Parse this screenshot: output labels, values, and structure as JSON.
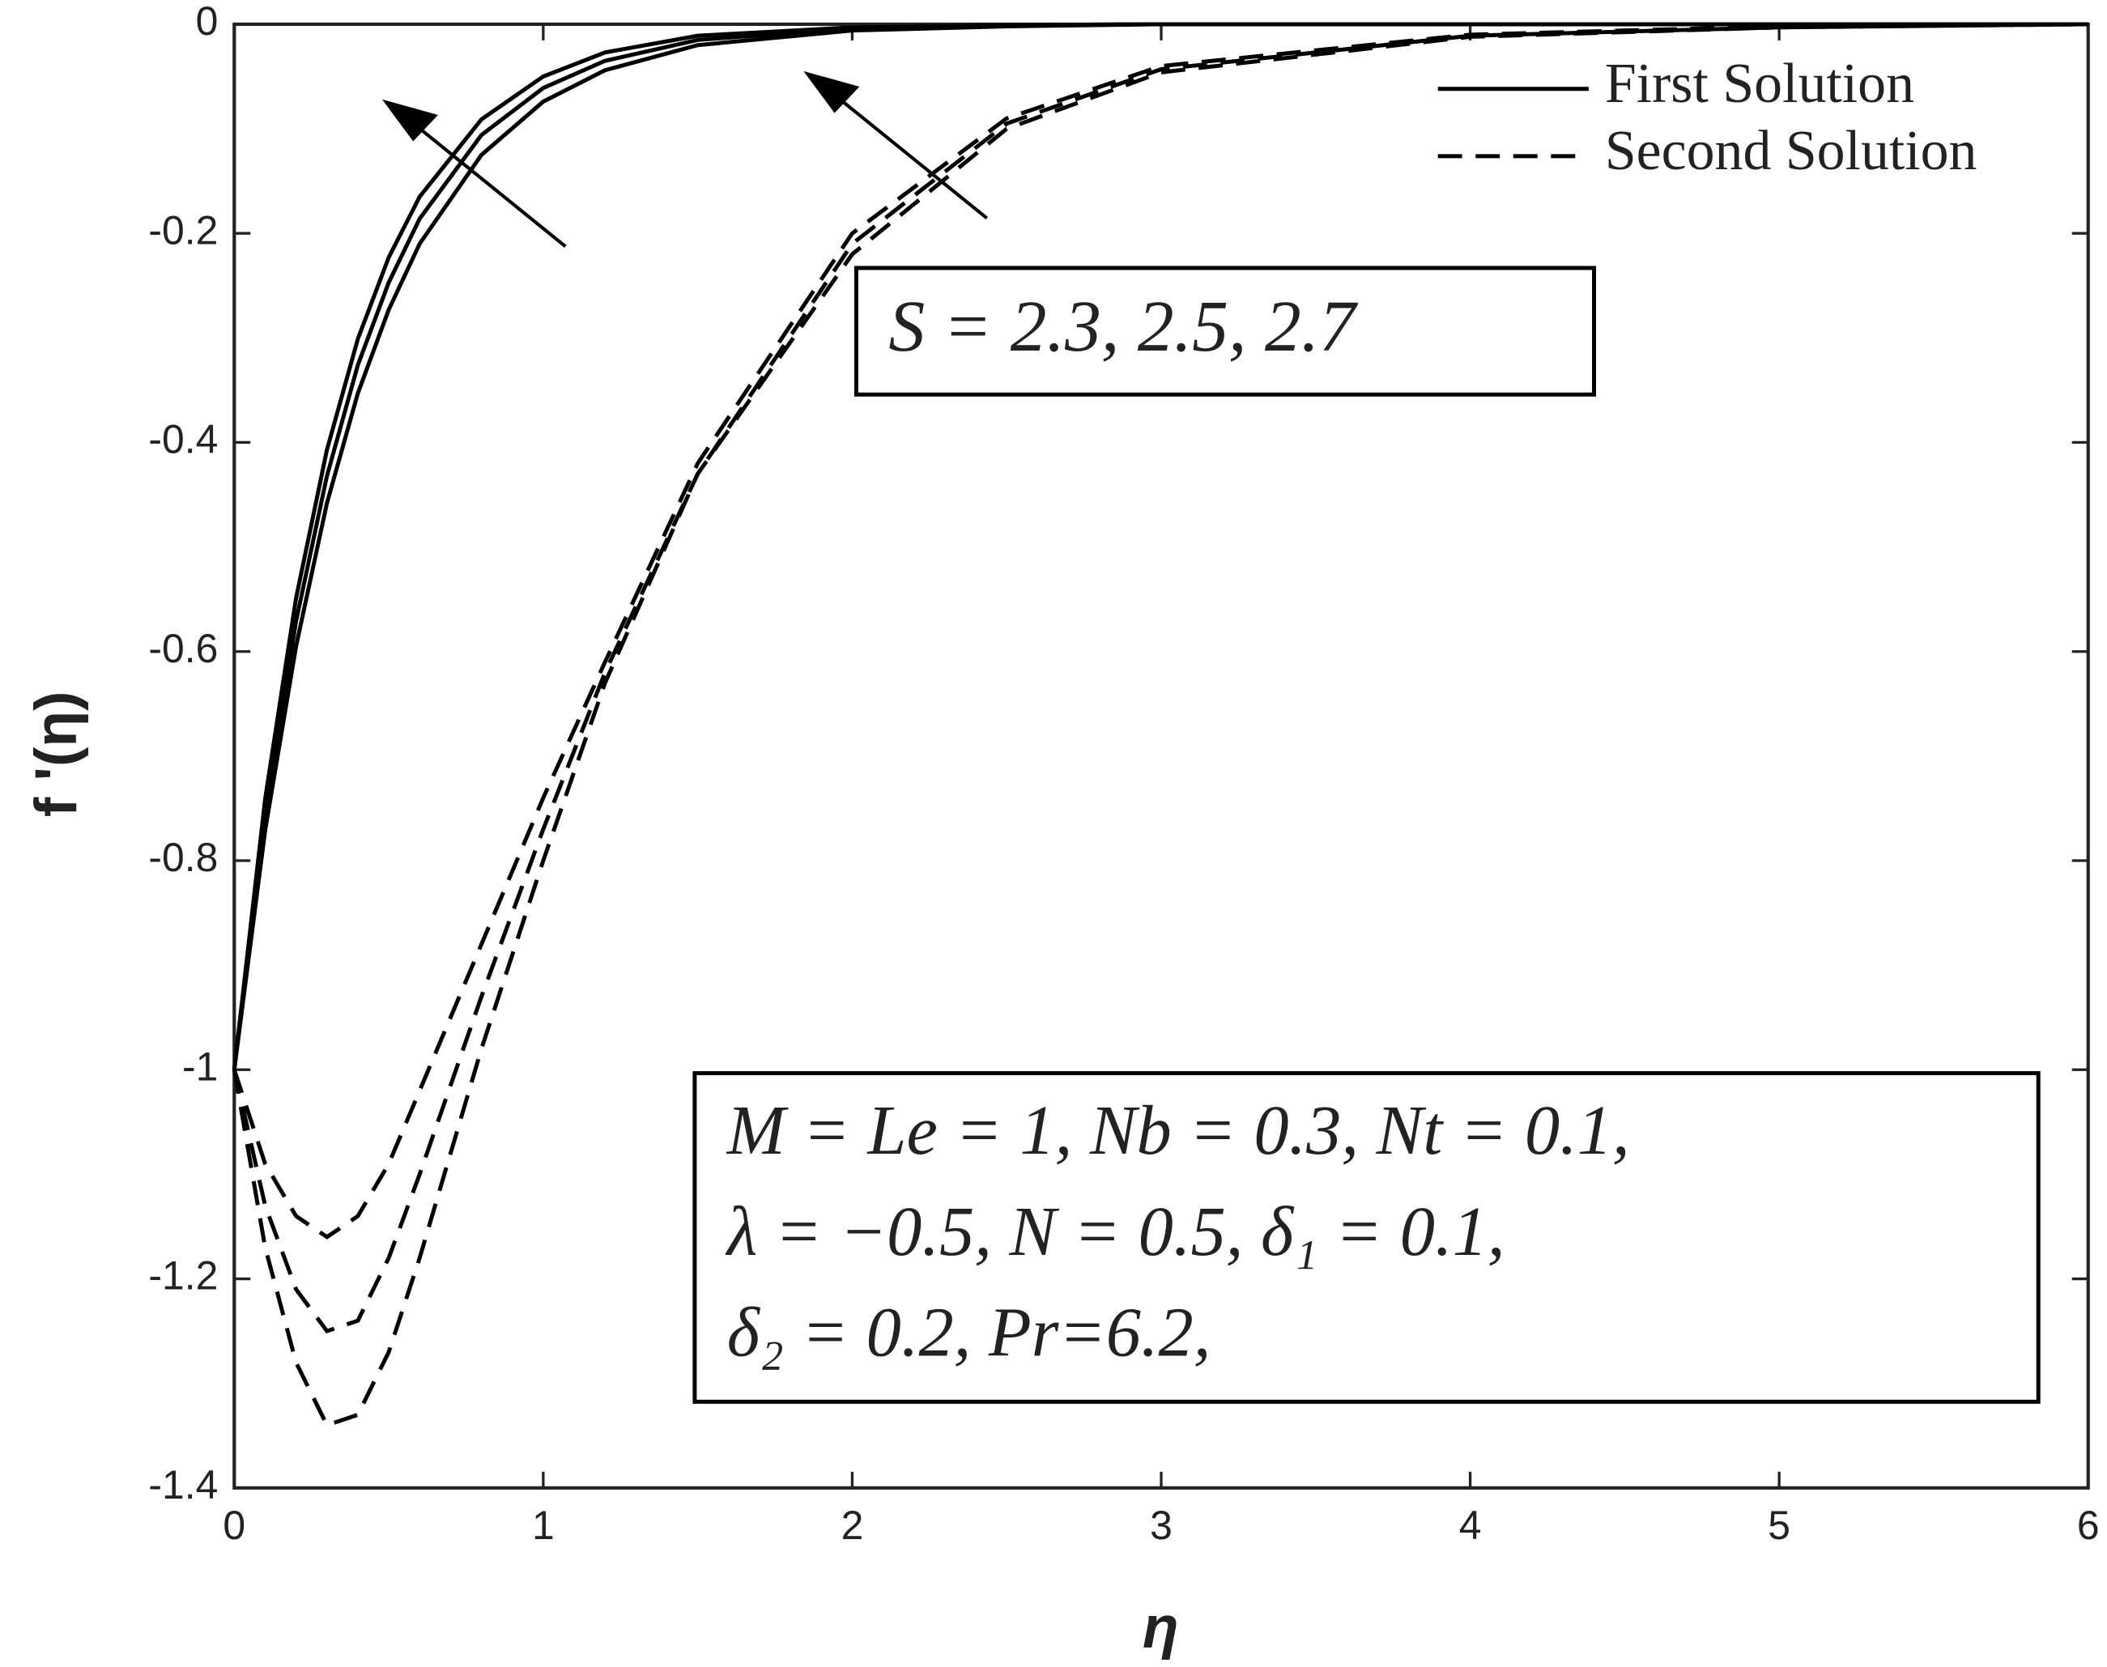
{
  "chart_data": {
    "type": "line",
    "x_label": "η",
    "y_label": "f '(η)",
    "x": [
      0,
      0.1,
      0.2,
      0.3,
      0.4,
      0.5,
      0.6,
      0.8,
      1.0,
      1.2,
      1.5,
      2,
      2.5,
      3,
      4,
      5,
      6
    ],
    "series": [
      {
        "name": "First Solution",
        "color": "#000000",
        "dash": "solid",
        "values": [
          [
            -1,
            -0.771,
            -0.595,
            -0.458,
            -0.353,
            -0.273,
            -0.21,
            -0.125,
            -0.074,
            -0.044,
            -0.02,
            -0.006,
            -0.002,
            0,
            0,
            0,
            0
          ],
          [
            -1,
            -0.756,
            -0.571,
            -0.432,
            -0.326,
            -0.247,
            -0.186,
            -0.106,
            -0.061,
            -0.035,
            -0.015,
            -0.004,
            -0.001,
            0,
            0,
            0,
            0
          ],
          [
            -1,
            -0.741,
            -0.549,
            -0.407,
            -0.301,
            -0.223,
            -0.165,
            -0.091,
            -0.05,
            -0.027,
            -0.011,
            -0.003,
            -0.001,
            0,
            0,
            0,
            0
          ]
        ]
      },
      {
        "name": "Second Solution",
        "color": "#000000",
        "dash": "dashed",
        "values": [
          [
            -1,
            -1.09,
            -1.14,
            -1.16,
            -1.14,
            -1.09,
            -1.02,
            -0.88,
            -0.74,
            -0.61,
            -0.42,
            -0.2,
            -0.09,
            -0.04,
            -0.01,
            -0.002,
            0
          ],
          [
            -1,
            -1.13,
            -1.21,
            -1.25,
            -1.24,
            -1.18,
            -1.1,
            -0.93,
            -0.77,
            -0.62,
            -0.43,
            -0.21,
            -0.095,
            -0.043,
            -0.011,
            -0.003,
            0
          ],
          [
            -1,
            -1.17,
            -1.28,
            -1.34,
            -1.33,
            -1.27,
            -1.18,
            -0.98,
            -0.8,
            -0.63,
            -0.43,
            -0.22,
            -0.1,
            -0.046,
            -0.012,
            -0.003,
            0
          ]
        ]
      }
    ],
    "xlim": [
      0,
      6
    ],
    "xticks": [
      0,
      1,
      2,
      3,
      4,
      5,
      6
    ],
    "ylim": [
      -1.4,
      0
    ],
    "yticks": [
      0,
      -0.2,
      -0.4,
      -0.6,
      -0.8,
      -1,
      -1.2,
      -1.4
    ],
    "grid": false,
    "legend_position": "upper right",
    "annotations": [
      "S = 2.3, 2.5, 2.7"
    ],
    "parameters": [
      "M = Le = 1, Nb = 0.3, Nt = 0.1,",
      "λ = −0.5, N = 0.5, δ₁ = 0.1,",
      "δ₂ = 0.2, Pr=6.2,"
    ]
  }
}
